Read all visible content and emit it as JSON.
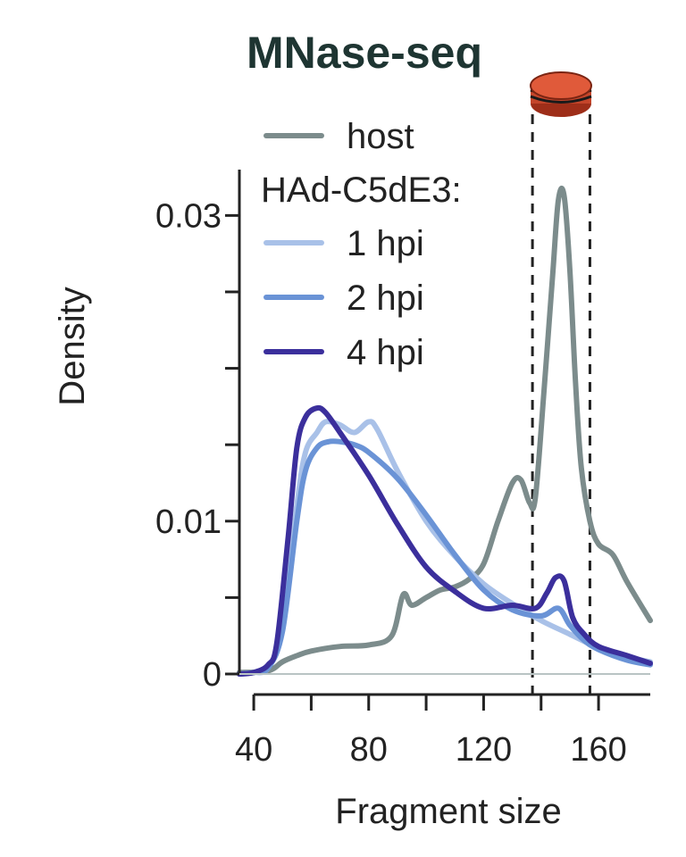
{
  "chart_data": {
    "type": "line",
    "title": "MNase-seq",
    "xlabel": "Fragment size",
    "ylabel": "Density",
    "xlim": [
      35,
      178
    ],
    "ylim": [
      0,
      0.033
    ],
    "x_ticks": [
      40,
      80,
      120,
      160
    ],
    "x_minor_ticks": [
      60,
      100,
      140
    ],
    "y_ticks": [
      0,
      0.01,
      0.03
    ],
    "y_tick_labels": [
      "0",
      "0.01",
      "0.03"
    ],
    "y_minor_ticks": [
      0.005,
      0.015,
      0.02,
      0.025
    ],
    "legend_title": "HAd-C5dE3:",
    "vlines": [
      137,
      157
    ],
    "annotation_icon": "nucleosome-icon",
    "series": [
      {
        "name": "host",
        "color": "#7c8c8c",
        "x": [
          35,
          45,
          50,
          55,
          60,
          70,
          80,
          88,
          92,
          95,
          100,
          105,
          110,
          115,
          120,
          125,
          130,
          133,
          136,
          138,
          141,
          144,
          146,
          148,
          150,
          152,
          154,
          157,
          160,
          165,
          170,
          178
        ],
        "y": [
          0.0001,
          0.0002,
          0.0008,
          0.0012,
          0.0015,
          0.0018,
          0.0019,
          0.0025,
          0.0052,
          0.0045,
          0.005,
          0.0055,
          0.0057,
          0.0062,
          0.0072,
          0.01,
          0.0125,
          0.0127,
          0.0112,
          0.0115,
          0.0185,
          0.026,
          0.031,
          0.0313,
          0.0265,
          0.019,
          0.0135,
          0.01,
          0.0085,
          0.0078,
          0.006,
          0.0035
        ]
      },
      {
        "name": "1 hpi",
        "color": "#a9c1e8",
        "x": [
          35,
          40,
          45,
          50,
          55,
          58,
          62,
          65,
          70,
          75,
          80,
          83,
          90,
          100,
          110,
          120,
          130,
          140,
          150,
          160,
          170,
          178
        ],
        "y": [
          0.0,
          0.0001,
          0.0004,
          0.003,
          0.011,
          0.0145,
          0.0158,
          0.0165,
          0.0163,
          0.0158,
          0.0165,
          0.016,
          0.0133,
          0.01,
          0.0077,
          0.0059,
          0.0046,
          0.0035,
          0.0026,
          0.0017,
          0.0011,
          0.0008
        ]
      },
      {
        "name": "2 hpi",
        "color": "#6a93d6",
        "x": [
          35,
          40,
          45,
          50,
          55,
          58,
          62,
          66,
          70,
          75,
          80,
          90,
          100,
          110,
          120,
          130,
          140,
          146,
          150,
          155,
          160,
          170,
          178
        ],
        "y": [
          0.0,
          0.0001,
          0.0004,
          0.0028,
          0.01,
          0.0133,
          0.0148,
          0.0152,
          0.0152,
          0.015,
          0.0145,
          0.0128,
          0.0104,
          0.0078,
          0.0055,
          0.0042,
          0.0038,
          0.0043,
          0.0032,
          0.0022,
          0.0016,
          0.0009,
          0.0006
        ]
      },
      {
        "name": "4 hpi",
        "color": "#3b2f9c",
        "x": [
          35,
          40,
          45,
          48,
          52,
          55,
          58,
          62,
          65,
          70,
          80,
          90,
          100,
          110,
          120,
          130,
          138,
          142,
          145,
          148,
          151,
          155,
          160,
          170,
          178
        ],
        "y": [
          0.0,
          0.0001,
          0.0006,
          0.002,
          0.009,
          0.0148,
          0.0168,
          0.0174,
          0.0171,
          0.0158,
          0.013,
          0.0098,
          0.007,
          0.0054,
          0.0043,
          0.0045,
          0.0043,
          0.0053,
          0.0063,
          0.0061,
          0.0037,
          0.0026,
          0.0018,
          0.0012,
          0.0007
        ]
      }
    ]
  }
}
